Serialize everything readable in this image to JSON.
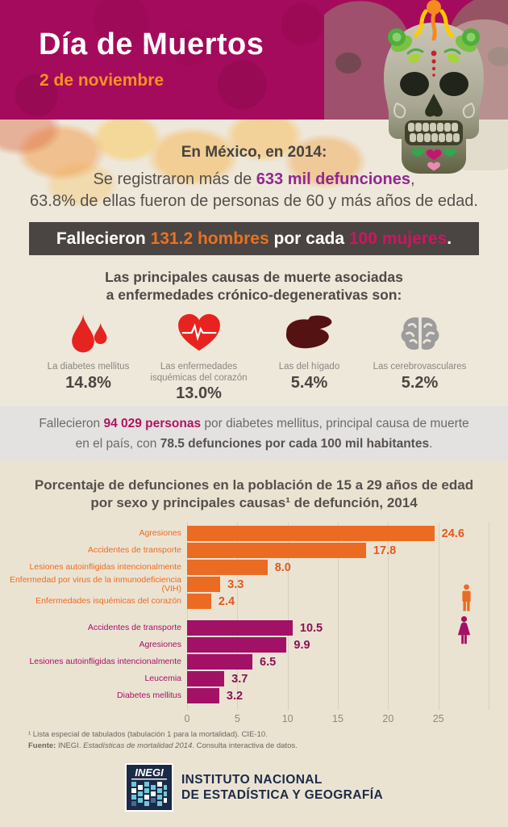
{
  "header": {
    "title": "Día de Muertos",
    "subtitle": "2 de noviembre"
  },
  "intro": {
    "heading": "En México, en 2014:",
    "line1": {
      "pre": "Se registraron más de ",
      "highlight": "633 mil defunciones",
      "post": ","
    },
    "line2": "63.8% de ellas fueron de personas de 60 y más años de edad.",
    "ratio_banner": {
      "pre": "Fallecieron ",
      "men": "131.2 hombres",
      "mid": " por cada ",
      "women": "100 mujeres",
      "post": "."
    }
  },
  "causes": {
    "title_line1": "Las principales causas de muerte asociadas",
    "title_line2": "a enfermedades crónico-degenerativas son:",
    "items": [
      {
        "icon": "blood-drops-icon",
        "label": "La diabetes mellitus",
        "value": "14.8%"
      },
      {
        "icon": "heart-ekg-icon",
        "label": "Las enfermedades isquémicas del corazón",
        "value": "13.0%"
      },
      {
        "icon": "liver-icon",
        "label": "Las del hígado",
        "value": "5.4%"
      },
      {
        "icon": "brain-icon",
        "label": "Las cerebrovasculares",
        "value": "5.2%"
      }
    ]
  },
  "diabetes_banner": {
    "pre": "Fallecieron ",
    "highlight": "94 029 personas",
    "mid1": " por diabetes mellitus, principal causa de muerte",
    "mid2": "en el país, con ",
    "bold": "78.5 defunciones por cada 100 mil habitantes",
    "post": "."
  },
  "chart_data": {
    "type": "bar",
    "orientation": "horizontal",
    "title_line1": "Porcentaje de defunciones en la población de 15 a 29 años de edad",
    "title_line2": "por sexo y principales causas¹ de defunción, 2014",
    "x_ticks": [
      0,
      5,
      10,
      15,
      20,
      25
    ],
    "xlim": [
      0,
      30
    ],
    "grid": true,
    "unit": "porcentaje de defunciones",
    "series": [
      {
        "name": "Hombres",
        "color": "#ec6b23",
        "value_color": "#e4581d",
        "categories": [
          "Agresiones",
          "Accidentes de transporte",
          "Lesiones autoinfligidas intencionalmente",
          "Enfermedad por virus de la inmunodeficiencia (VIH)",
          "Enfermedades isquémicas del corazón"
        ],
        "values": [
          24.6,
          17.8,
          8.0,
          3.3,
          2.4
        ],
        "value_labels": [
          "24.6",
          "17.8",
          "8.0",
          "3.3",
          "2.4"
        ]
      },
      {
        "name": "Mujeres",
        "color": "#a31166",
        "value_color": "#8c1157",
        "categories": [
          "Accidentes de transporte",
          "Agresiones",
          "Lesiones autoinfligidas intencionalmente",
          "Leucemia",
          "Diabetes mellitus"
        ],
        "values": [
          10.5,
          9.9,
          6.5,
          3.7,
          3.2
        ],
        "value_labels": [
          "10.5",
          "9.9",
          "6.5",
          "3.7",
          "3.2"
        ]
      }
    ]
  },
  "footer": {
    "footnote": "¹ Lista especial de tabulados (tabulación 1 para la mortalidad). CIE-10.",
    "source": {
      "label": "Fuente:",
      "pre": " INEGI. ",
      "italic": "Estadísticas de mortalidad 2014",
      "post": ". Consulta interactiva de datos."
    },
    "logo": {
      "acronym": "INEGI",
      "line1": "INSTITUTO NACIONAL",
      "line2": "DE ESTADÍSTICA Y GEOGRAFÍA"
    }
  },
  "colors": {
    "header_bg": "#a50b5c",
    "subtitle_orange": "#f6921e",
    "highlight_purple": "#93278f",
    "banner_bg": "#4a4442",
    "banner_orange": "#e87222",
    "banner_magenta": "#cc1760",
    "diabetes_magenta": "#b1135e",
    "male_bar": "#ec6b23",
    "female_bar": "#a31166",
    "inegi_navy": "#1b2a47"
  }
}
